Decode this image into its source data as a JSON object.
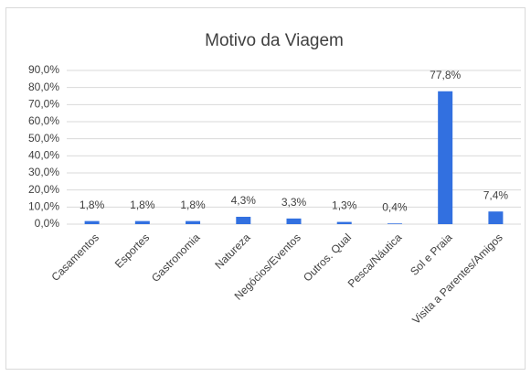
{
  "chart_data": {
    "type": "bar",
    "title": "Motivo da Viagem",
    "categories": [
      "Casamentos",
      "Esportes",
      "Gastronomia",
      "Natureza",
      "Negócios/Eventos",
      "Outros. Qual",
      "Pesca/Náutica",
      "Sol e Praia",
      "Visita a Parentes/Amigos"
    ],
    "values": [
      1.8,
      1.8,
      1.8,
      4.3,
      3.3,
      1.3,
      0.4,
      77.8,
      7.4
    ],
    "value_labels": [
      "1,8%",
      "1,8%",
      "1,8%",
      "4,3%",
      "3,3%",
      "1,3%",
      "0,4%",
      "77,8%",
      "7,4%"
    ],
    "color": "#3270e0",
    "ylim": [
      0,
      90
    ],
    "yticks": [
      {
        "value": 0,
        "label": "0,0%"
      },
      {
        "value": 10,
        "label": "10,0%"
      },
      {
        "value": 20,
        "label": "20,0%"
      },
      {
        "value": 30,
        "label": "30,0%"
      },
      {
        "value": 40,
        "label": "40,0%"
      },
      {
        "value": 50,
        "label": "50,0%"
      },
      {
        "value": 60,
        "label": "60,0%"
      },
      {
        "value": 70,
        "label": "70,0%"
      },
      {
        "value": 80,
        "label": "80,0%"
      },
      {
        "value": 90,
        "label": "90,0%"
      }
    ],
    "grid": true
  }
}
